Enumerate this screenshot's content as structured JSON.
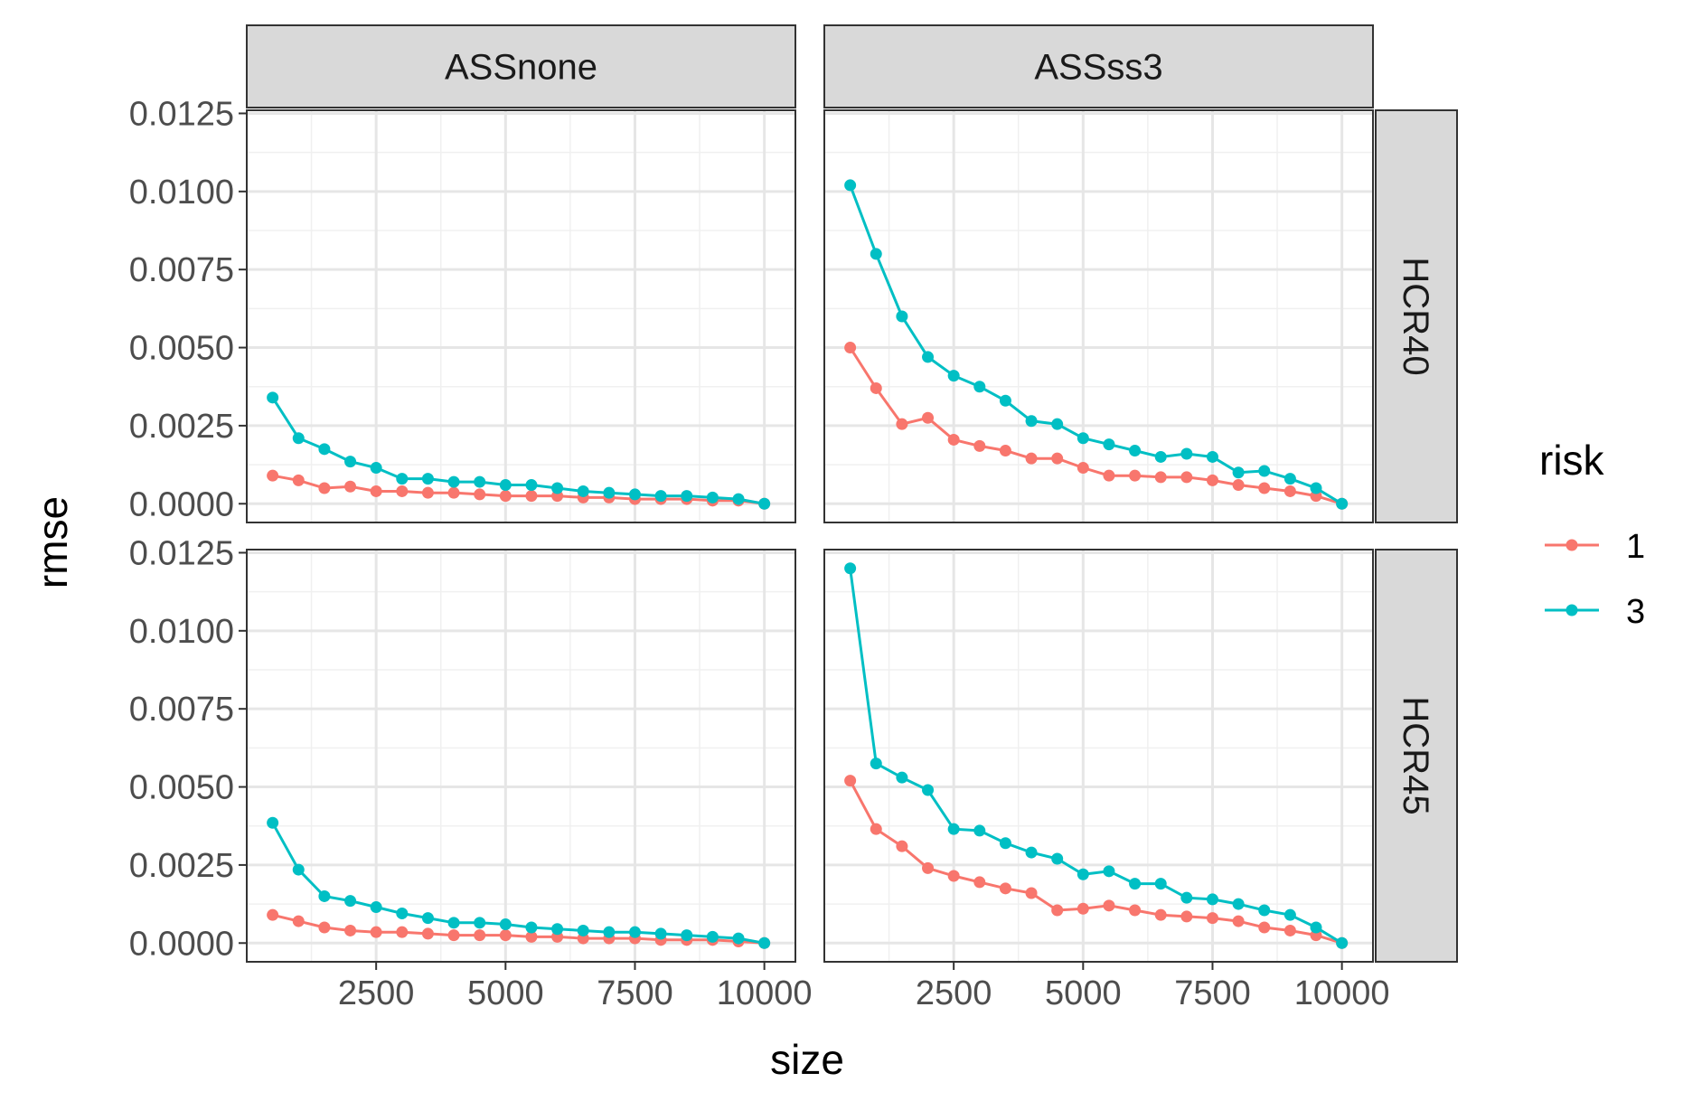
{
  "chart_data": {
    "type": "line",
    "xlabel": "size",
    "ylabel": "rmse",
    "xlim": [
      0,
      10600
    ],
    "ylim": [
      -0.0006,
      0.0126
    ],
    "x_ticks": [
      2500,
      5000,
      7500,
      10000
    ],
    "x_tick_labels": [
      "2500",
      "5000",
      "7500",
      "10000"
    ],
    "y_ticks": [
      0,
      0.0025,
      0.005,
      0.0075,
      0.01,
      0.0125
    ],
    "y_tick_labels": [
      "0.0000",
      "0.0025",
      "0.0050",
      "0.0075",
      "0.0100",
      "0.0125"
    ],
    "grid": true,
    "legend": {
      "title": "risk",
      "position": "right",
      "entries": [
        {
          "label": "1",
          "color": "#F8766D"
        },
        {
          "label": "3",
          "color": "#00BFC4"
        }
      ]
    },
    "facet_cols": [
      "ASSnone",
      "ASSss3"
    ],
    "facet_rows": [
      "HCR40",
      "HCR45"
    ],
    "x": [
      500,
      1000,
      1500,
      2000,
      2500,
      3000,
      3500,
      4000,
      4500,
      5000,
      5500,
      6000,
      6500,
      7000,
      7500,
      8000,
      8500,
      9000,
      9500,
      10000
    ],
    "panels": [
      {
        "col": "ASSnone",
        "row": "HCR40",
        "series": [
          {
            "name": "1",
            "values": [
              0.0009,
              0.00075,
              0.0005,
              0.00055,
              0.0004,
              0.0004,
              0.00035,
              0.00035,
              0.0003,
              0.00025,
              0.00025,
              0.00025,
              0.0002,
              0.0002,
              0.00015,
              0.00015,
              0.00015,
              0.0001,
              0.0001,
              0.0
            ]
          },
          {
            "name": "3",
            "values": [
              0.0034,
              0.0021,
              0.00175,
              0.00135,
              0.00115,
              0.0008,
              0.0008,
              0.0007,
              0.0007,
              0.0006,
              0.0006,
              0.0005,
              0.0004,
              0.00035,
              0.0003,
              0.00025,
              0.00025,
              0.0002,
              0.00015,
              0.0
            ]
          }
        ]
      },
      {
        "col": "ASSss3",
        "row": "HCR40",
        "series": [
          {
            "name": "1",
            "values": [
              0.005,
              0.0037,
              0.00255,
              0.00275,
              0.00205,
              0.00185,
              0.0017,
              0.00145,
              0.00145,
              0.00115,
              0.0009,
              0.0009,
              0.00085,
              0.00085,
              0.00075,
              0.0006,
              0.0005,
              0.0004,
              0.00025,
              0.0
            ]
          },
          {
            "name": "3",
            "values": [
              0.0102,
              0.008,
              0.006,
              0.0047,
              0.0041,
              0.00375,
              0.0033,
              0.00265,
              0.00255,
              0.0021,
              0.0019,
              0.0017,
              0.0015,
              0.0016,
              0.0015,
              0.001,
              0.00105,
              0.0008,
              0.0005,
              0.0
            ]
          }
        ]
      },
      {
        "col": "ASSnone",
        "row": "HCR45",
        "series": [
          {
            "name": "1",
            "values": [
              0.0009,
              0.0007,
              0.0005,
              0.0004,
              0.00035,
              0.00035,
              0.0003,
              0.00025,
              0.00025,
              0.00025,
              0.0002,
              0.0002,
              0.00015,
              0.00015,
              0.00015,
              0.0001,
              0.0001,
              0.0001,
              5e-05,
              0.0
            ]
          },
          {
            "name": "3",
            "values": [
              0.00385,
              0.00235,
              0.0015,
              0.00135,
              0.00115,
              0.00095,
              0.0008,
              0.00065,
              0.00065,
              0.0006,
              0.0005,
              0.00045,
              0.0004,
              0.00035,
              0.00035,
              0.0003,
              0.00025,
              0.0002,
              0.00015,
              0.0
            ]
          }
        ]
      },
      {
        "col": "ASSss3",
        "row": "HCR45",
        "series": [
          {
            "name": "1",
            "values": [
              0.0052,
              0.00365,
              0.0031,
              0.0024,
              0.00215,
              0.00195,
              0.00175,
              0.0016,
              0.00105,
              0.0011,
              0.0012,
              0.00105,
              0.0009,
              0.00085,
              0.0008,
              0.0007,
              0.0005,
              0.0004,
              0.00025,
              0.0
            ]
          },
          {
            "name": "3",
            "values": [
              0.012,
              0.00575,
              0.0053,
              0.0049,
              0.00365,
              0.0036,
              0.0032,
              0.0029,
              0.0027,
              0.0022,
              0.0023,
              0.0019,
              0.0019,
              0.00145,
              0.0014,
              0.00125,
              0.00105,
              0.0009,
              0.0005,
              0.0
            ]
          }
        ]
      }
    ]
  }
}
